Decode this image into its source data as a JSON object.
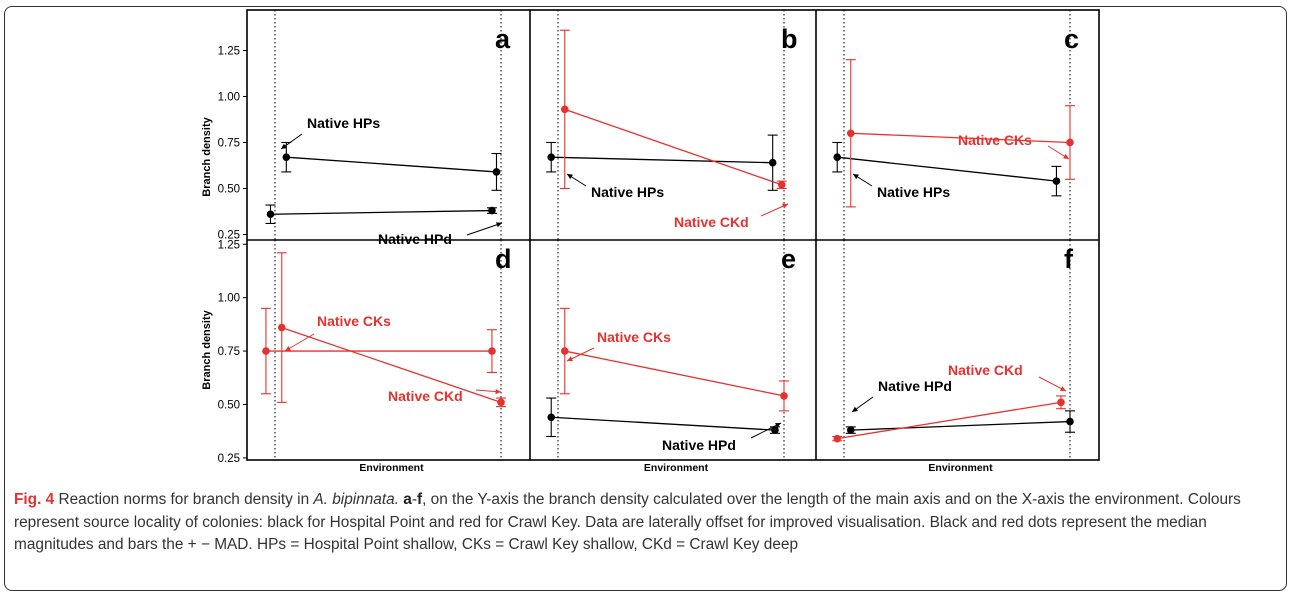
{
  "figure": {
    "colors": {
      "hospital_point": "#000000",
      "crawl_key": "#e7312e"
    },
    "caption": {
      "label": "Fig. 4",
      "intro": " Reaction norms for branch density in ",
      "species": "A. bipinnata.",
      "sep1": " ",
      "panel_a": "a",
      "dash": "-",
      "panel_f": "f",
      "rest": ", on the Y-axis the branch density calculated over the length of the main axis and on the X-axis the environment. Colours represent source locality of colonies: black for Hospital Point and red for Crawl Key. Data are laterally offset for improved visualisation. Black and red dots represent the median magnitudes and bars the + − MAD. HPs = Hospital Point shallow, CKs = Crawl Key shallow, CKd = Crawl Key deep"
    }
  },
  "chart_data": [
    {
      "type": "line",
      "panel": "a",
      "ylabel": "Branch density",
      "xlabel": "",
      "ylim": [
        0.22,
        1.47
      ],
      "yticks": [
        "0.25",
        "0.50",
        "0.75",
        "1.00",
        "1.25"
      ],
      "series": [
        {
          "name": "Native HPs",
          "color": "black",
          "x": [
            0.05,
            0.98
          ],
          "y": [
            0.67,
            0.59
          ],
          "err": [
            0.08,
            0.1
          ]
        },
        {
          "name": "Native HPd",
          "color": "black",
          "x": [
            -0.02,
            0.96
          ],
          "y": [
            0.36,
            0.38
          ],
          "err": [
            0.05,
            0.015
          ]
        }
      ]
    },
    {
      "type": "line",
      "panel": "b",
      "ylabel": "",
      "xlabel": "",
      "ylim": [
        0.22,
        1.47
      ],
      "series": [
        {
          "name": "Native HPs",
          "color": "black",
          "x": [
            -0.03,
            0.95
          ],
          "y": [
            0.67,
            0.64
          ],
          "err": [
            0.08,
            0.15
          ]
        },
        {
          "name": "Native CKd",
          "color": "red",
          "x": [
            0.03,
            0.99
          ],
          "y": [
            0.93,
            0.52
          ],
          "err": [
            0.43,
            0.02
          ]
        }
      ]
    },
    {
      "type": "line",
      "panel": "c",
      "ylabel": "",
      "xlabel": "",
      "ylim": [
        0.22,
        1.47
      ],
      "series": [
        {
          "name": "Native HPs",
          "color": "black",
          "x": [
            -0.03,
            0.94
          ],
          "y": [
            0.67,
            0.54
          ],
          "err": [
            0.08,
            0.08
          ]
        },
        {
          "name": "Native CKs",
          "color": "red",
          "x": [
            0.03,
            1.0
          ],
          "y": [
            0.8,
            0.75
          ],
          "err": [
            0.4,
            0.2
          ]
        }
      ]
    },
    {
      "type": "line",
      "panel": "d",
      "ylabel": "Branch density",
      "xlabel": "Environment",
      "ylim": [
        0.24,
        1.27
      ],
      "yticks": [
        "0.25",
        "0.50",
        "0.75",
        "1.00",
        "1.25"
      ],
      "series": [
        {
          "name": "",
          "color": "red",
          "x": [
            -0.04,
            0.96
          ],
          "y": [
            0.75,
            0.75
          ],
          "err": [
            0.2,
            0.1
          ]
        },
        {
          "name": "Native CKs",
          "color": "red",
          "x": [
            0.03,
            1.0
          ],
          "y": [
            0.86,
            0.51
          ],
          "err": [
            0.35,
            0.02
          ]
        }
      ],
      "labels": [
        "Native CKs",
        "Native CKd"
      ]
    },
    {
      "type": "line",
      "panel": "e",
      "ylabel": "",
      "xlabel": "Environment",
      "ylim": [
        0.24,
        1.27
      ],
      "series": [
        {
          "name": "Native CKs",
          "color": "red",
          "x": [
            0.03,
            1.0
          ],
          "y": [
            0.75,
            0.54
          ],
          "err": [
            0.2,
            0.07
          ]
        },
        {
          "name": "Native HPd",
          "color": "black",
          "x": [
            -0.03,
            0.96
          ],
          "y": [
            0.44,
            0.38
          ],
          "err": [
            0.09,
            0.015
          ]
        }
      ]
    },
    {
      "type": "line",
      "panel": "f",
      "ylabel": "",
      "xlabel": "Environment",
      "ylim": [
        0.24,
        1.27
      ],
      "series": [
        {
          "name": "Native HPd",
          "color": "black",
          "x": [
            0.03,
            1.0
          ],
          "y": [
            0.38,
            0.42
          ],
          "err": [
            0.015,
            0.05
          ]
        },
        {
          "name": "Native CKd",
          "color": "red",
          "x": [
            -0.03,
            0.96
          ],
          "y": [
            0.34,
            0.51
          ],
          "err": [
            0.01,
            0.03
          ]
        }
      ]
    }
  ]
}
